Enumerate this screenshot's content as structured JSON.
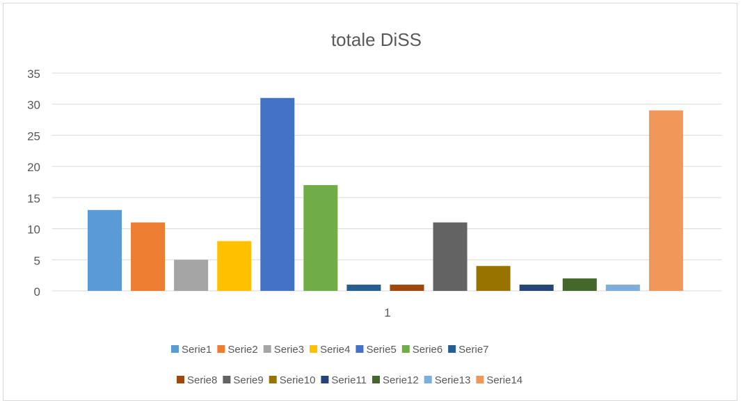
{
  "chart_data": {
    "type": "bar",
    "title": "totale DiSS",
    "categories": [
      "1"
    ],
    "ylim": [
      0,
      35
    ],
    "yticks": [
      0,
      5,
      10,
      15,
      20,
      25,
      30,
      35
    ],
    "grid": true,
    "legend_position": "bottom",
    "series": [
      {
        "name": "Serie1",
        "values": [
          13
        ],
        "color": "#5b9bd5"
      },
      {
        "name": "Serie2",
        "values": [
          11
        ],
        "color": "#ed7d31"
      },
      {
        "name": "Serie3",
        "values": [
          5
        ],
        "color": "#a5a5a5"
      },
      {
        "name": "Serie4",
        "values": [
          8
        ],
        "color": "#ffc000"
      },
      {
        "name": "Serie5",
        "values": [
          31
        ],
        "color": "#4472c4"
      },
      {
        "name": "Serie6",
        "values": [
          17
        ],
        "color": "#70ad47"
      },
      {
        "name": "Serie7",
        "values": [
          1
        ],
        "color": "#255e91"
      },
      {
        "name": "Serie8",
        "values": [
          1
        ],
        "color": "#9e480e"
      },
      {
        "name": "Serie9",
        "values": [
          11
        ],
        "color": "#636363"
      },
      {
        "name": "Serie10",
        "values": [
          4
        ],
        "color": "#997300"
      },
      {
        "name": "Serie11",
        "values": [
          1
        ],
        "color": "#264478"
      },
      {
        "name": "Serie12",
        "values": [
          2
        ],
        "color": "#43682b"
      },
      {
        "name": "Serie13",
        "values": [
          1
        ],
        "color": "#7cafdd"
      },
      {
        "name": "Serie14",
        "values": [
          29
        ],
        "color": "#f1975a"
      }
    ]
  }
}
